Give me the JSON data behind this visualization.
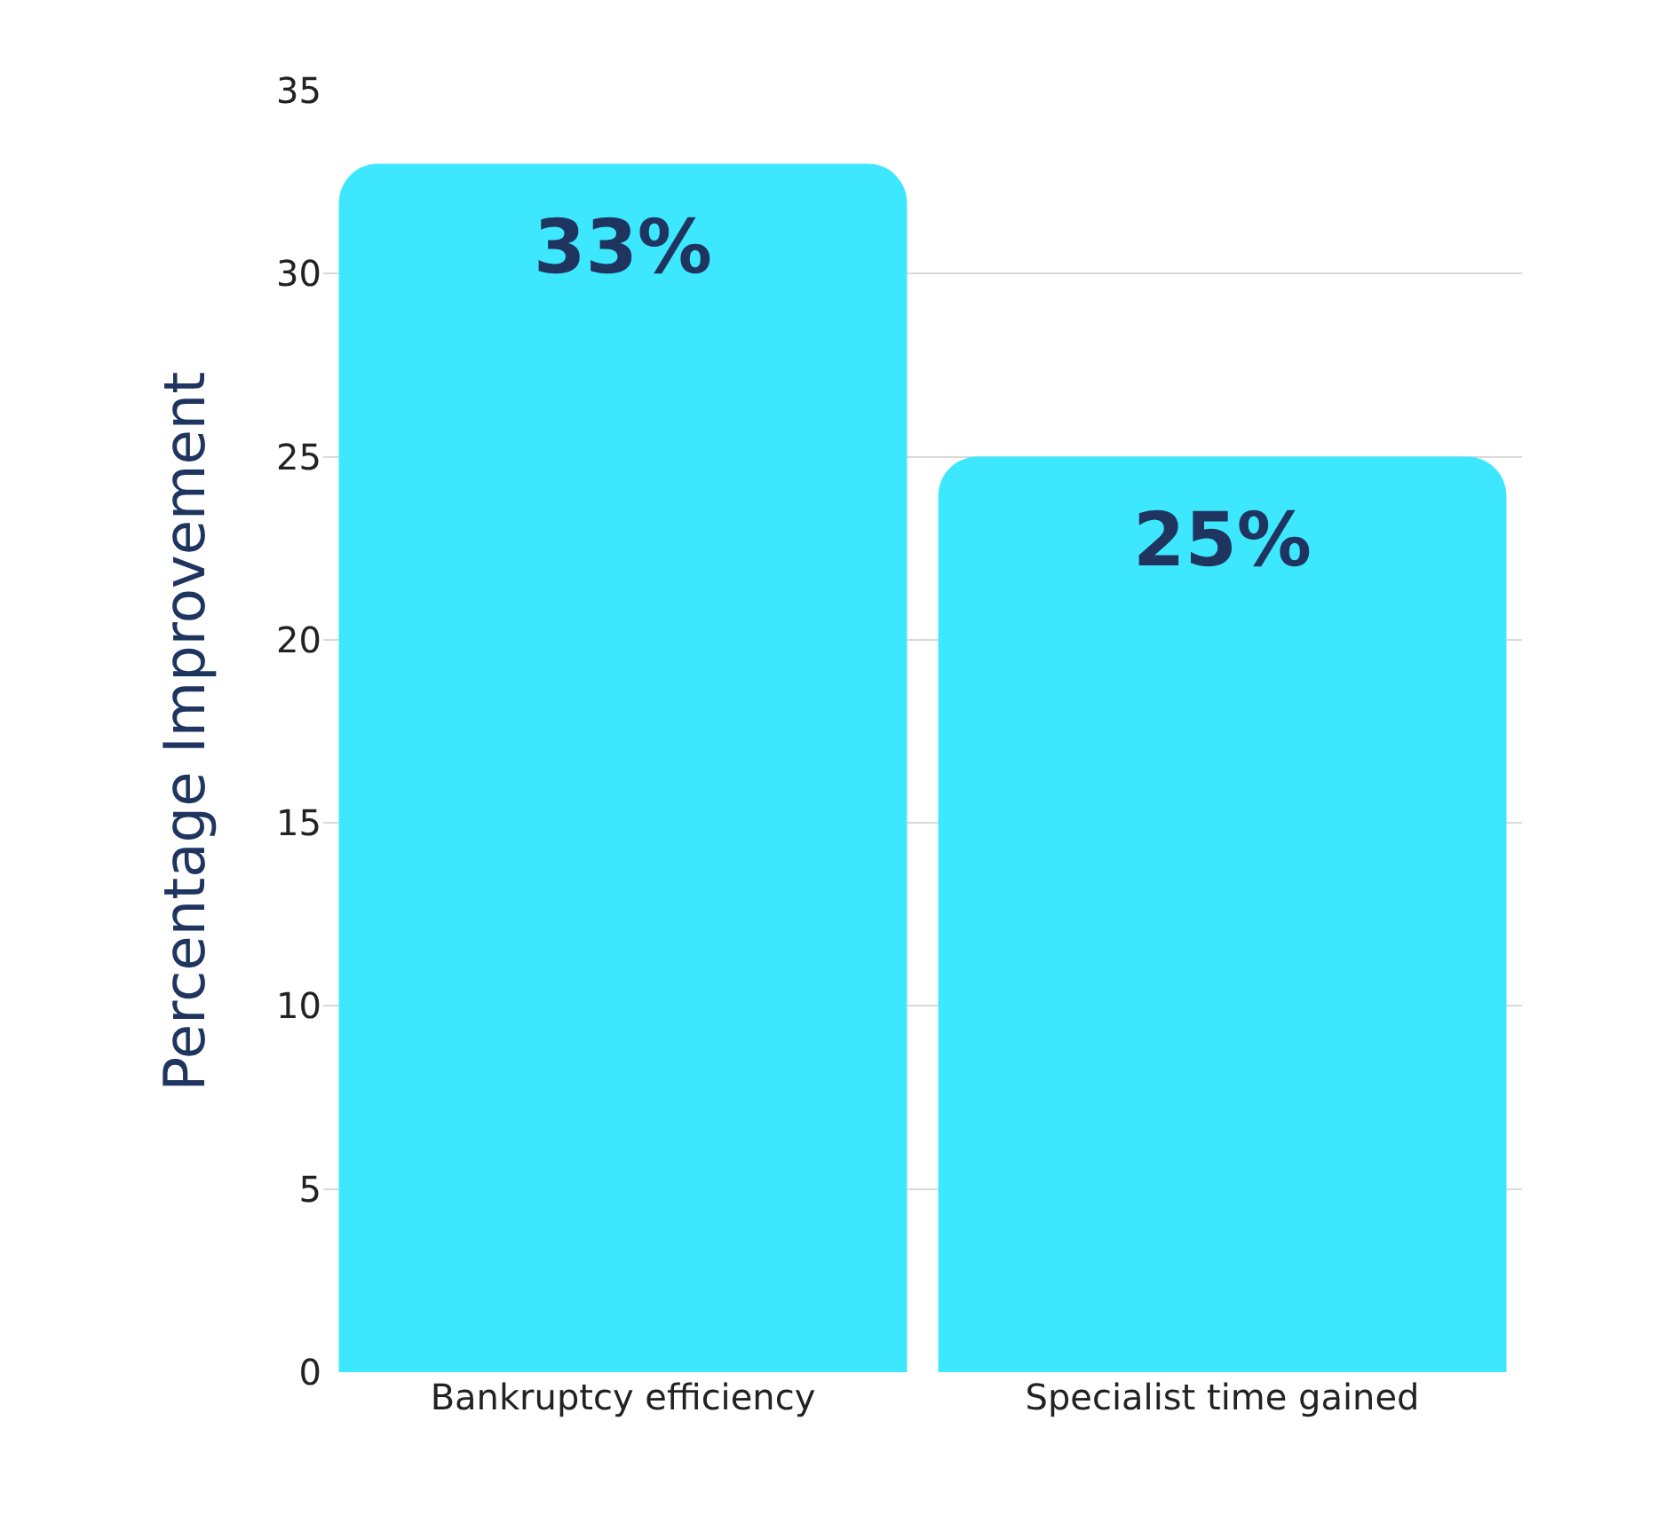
{
  "chart_data": {
    "type": "bar",
    "ylabel": "Percentage Improvement",
    "categories": [
      "Bankruptcy efficiency",
      "Specialist time gained"
    ],
    "values": [
      33,
      25
    ],
    "value_labels": [
      "33%",
      "25%"
    ],
    "color": "#3de8ff",
    "ylim": [
      0,
      35
    ],
    "yticks": [
      0,
      5,
      10,
      15,
      20,
      25,
      30,
      35
    ],
    "grid": "y"
  }
}
